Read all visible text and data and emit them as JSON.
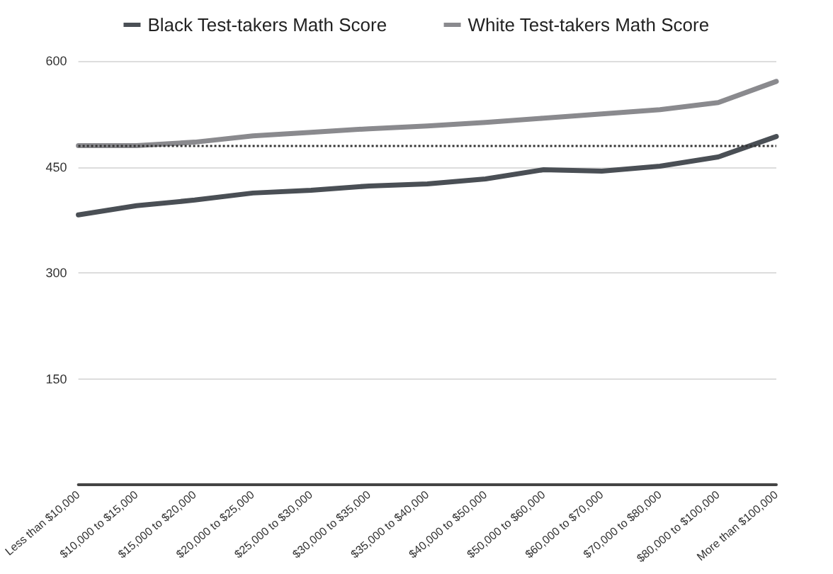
{
  "chart_data": {
    "type": "line",
    "categories": [
      "Less than $10,000",
      "$10,000 to $15,000",
      "$15,000 to $20,000",
      "$20,000 to $25,000",
      "$25,000 to $30,000",
      "$30,000 to $35,000",
      "$35,000 to $40,000",
      "$40,000 to $50,000",
      "$50,000 to $60,000",
      "$60,000 to $70,000",
      "$70,000 to $80,000",
      "$80,000 to $100,000",
      "More than $100,000"
    ],
    "series": [
      {
        "name": "Black Test-takers Math Score",
        "color": "#4a4f55",
        "values": [
          382,
          395,
          403,
          413,
          417,
          423,
          426,
          433,
          446,
          444,
          451,
          464,
          493
        ]
      },
      {
        "name": "White Test-takers Math Score",
        "color": "#8a8a8e",
        "values": [
          480,
          480,
          485,
          494,
          499,
          504,
          508,
          513,
          519,
          525,
          531,
          541,
          571
        ]
      }
    ],
    "ylim": [
      0,
      600
    ],
    "yticks": [
      150,
      300,
      450,
      600
    ],
    "ref_lines": [
      {
        "axis": "y",
        "value": 480,
        "color": "#333333",
        "line_style": "dotted"
      }
    ],
    "grid": "y",
    "legend": "top",
    "marker": "none",
    "line_style": "solid"
  }
}
